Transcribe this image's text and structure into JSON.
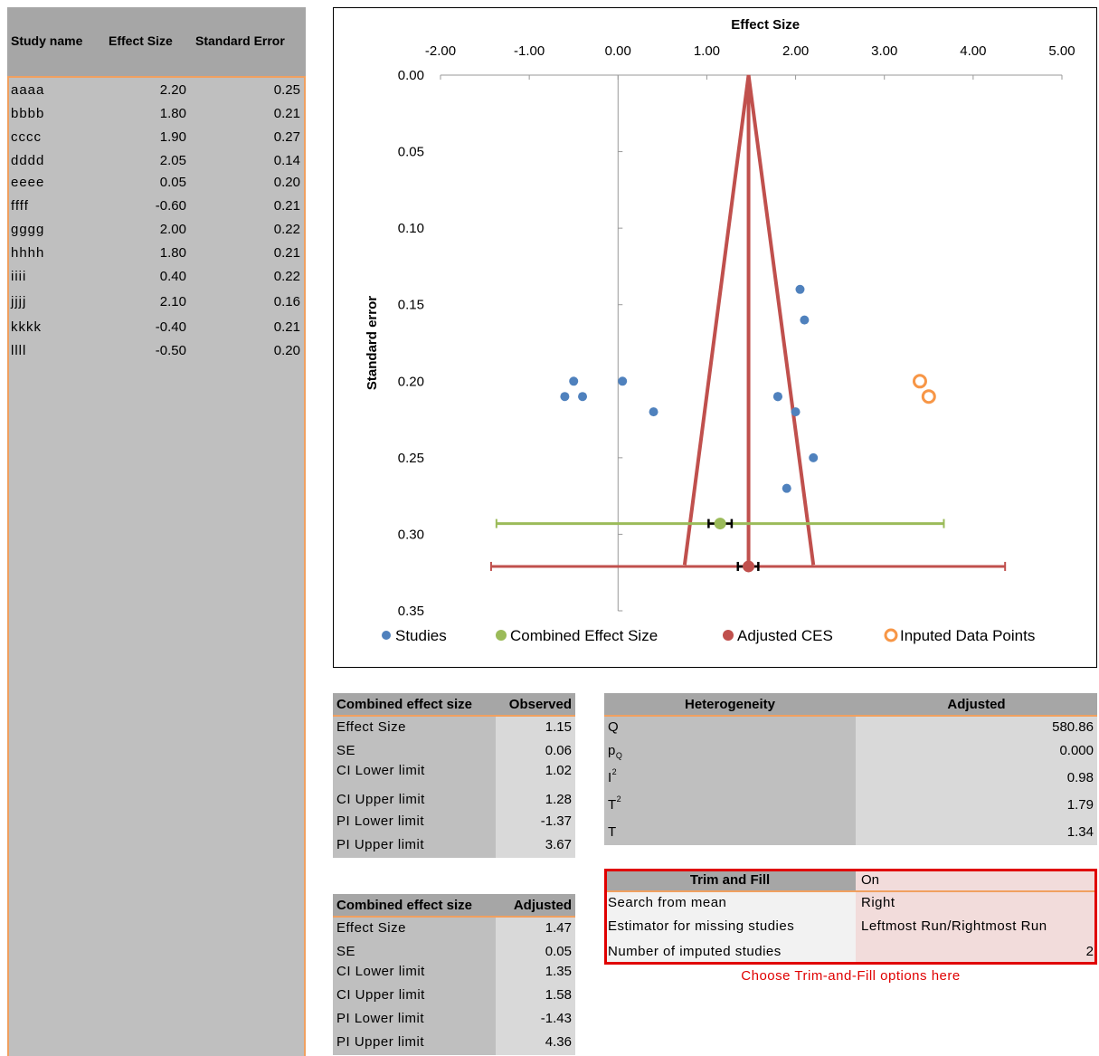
{
  "studies_table": {
    "headers": [
      "Study name",
      "Effect Size",
      "Standard Error"
    ],
    "rows": [
      {
        "name": "aaaa",
        "effect": "2.20",
        "se": "0.25"
      },
      {
        "name": "bbbb",
        "effect": "1.80",
        "se": "0.21"
      },
      {
        "name": "cccc",
        "effect": "1.90",
        "se": "0.27"
      },
      {
        "name": "dddd",
        "effect": "2.05",
        "se": "0.14"
      },
      {
        "name": "eeee",
        "effect": "0.05",
        "se": "0.20"
      },
      {
        "name": "ffff",
        "effect": "-0.60",
        "se": "0.21"
      },
      {
        "name": "gggg",
        "effect": "2.00",
        "se": "0.22"
      },
      {
        "name": "hhhh",
        "effect": "1.80",
        "se": "0.21"
      },
      {
        "name": "iiii",
        "effect": "0.40",
        "se": "0.22"
      },
      {
        "name": "jjjj",
        "effect": "2.10",
        "se": "0.16"
      },
      {
        "name": "kkkk",
        "effect": "-0.40",
        "se": "0.21"
      },
      {
        "name": "llll",
        "effect": "-0.50",
        "se": "0.20"
      }
    ]
  },
  "chart_data": {
    "type": "scatter",
    "title": "Effect Size",
    "xlabel": "Effect Size",
    "ylabel": "Standard error",
    "xlim": [
      -2,
      5
    ],
    "ylim": [
      0,
      0.35
    ],
    "y_inverted": true,
    "x_ticks": [
      "-2.00",
      "-1.00",
      "0.00",
      "1.00",
      "2.00",
      "3.00",
      "4.00",
      "5.00"
    ],
    "y_ticks": [
      "0.00",
      "0.05",
      "0.10",
      "0.15",
      "0.20",
      "0.25",
      "0.30",
      "0.35"
    ],
    "legend_position": "bottom",
    "series": [
      {
        "name": "Studies",
        "color": "#4f81bd",
        "points": [
          [
            2.2,
            0.25
          ],
          [
            1.8,
            0.21
          ],
          [
            1.9,
            0.27
          ],
          [
            2.05,
            0.14
          ],
          [
            0.05,
            0.2
          ],
          [
            -0.6,
            0.21
          ],
          [
            2.0,
            0.22
          ],
          [
            1.8,
            0.21
          ],
          [
            0.4,
            0.22
          ],
          [
            2.1,
            0.16
          ],
          [
            -0.4,
            0.21
          ],
          [
            -0.5,
            0.2
          ]
        ]
      },
      {
        "name": "Combined Effect Size",
        "color": "#9bbb59",
        "point": [
          1.15,
          0.293
        ],
        "ci": [
          1.02,
          1.28
        ],
        "pi": [
          -1.37,
          3.67
        ]
      },
      {
        "name": "Adjusted CES",
        "color": "#c0504d",
        "point": [
          1.47,
          0.321
        ],
        "ci": [
          1.35,
          1.58
        ],
        "pi": [
          -1.43,
          4.36
        ]
      },
      {
        "name": "Inputed Data Points",
        "color": "#f79646",
        "hollow": true,
        "points": [
          [
            3.4,
            0.2
          ],
          [
            3.5,
            0.21
          ]
        ]
      }
    ],
    "funnel": {
      "color": "#c0504d",
      "apex": [
        1.47,
        0.0
      ],
      "base_left": [
        0.75,
        0.32
      ],
      "base_right": [
        2.2,
        0.32
      ]
    }
  },
  "observed_table": {
    "header_label": "Combined effect size",
    "header_value": "Observed",
    "rows": [
      {
        "label": "Effect Size",
        "value": "1.15"
      },
      {
        "label": "SE",
        "value": "0.06"
      },
      {
        "label": "CI Lower limit",
        "value": "1.02"
      },
      {
        "label": "CI Upper limit",
        "value": "1.28"
      },
      {
        "label": "PI Lower limit",
        "value": "-1.37"
      },
      {
        "label": "PI Upper limit",
        "value": "3.67"
      }
    ]
  },
  "adjusted_table": {
    "header_label": "Combined effect size",
    "header_value": "Adjusted",
    "rows": [
      {
        "label": "Effect Size",
        "value": "1.47"
      },
      {
        "label": "SE",
        "value": "0.05"
      },
      {
        "label": "CI Lower limit",
        "value": "1.35"
      },
      {
        "label": "CI Upper limit",
        "value": "1.58"
      },
      {
        "label": "PI Lower limit",
        "value": "-1.43"
      },
      {
        "label": "PI Upper limit",
        "value": "4.36"
      }
    ]
  },
  "heterogeneity_table": {
    "header_label": "Heterogeneity",
    "header_value": "Adjusted",
    "rows": [
      {
        "label": "Q",
        "sup": "",
        "sub": "",
        "value": "580.86"
      },
      {
        "label": "p",
        "sup": "",
        "sub": "Q",
        "value": "0.000"
      },
      {
        "label": "I",
        "sup": "2",
        "sub": "",
        "value": "0.98"
      },
      {
        "label": "T",
        "sup": "2",
        "sub": "",
        "value": "1.79"
      },
      {
        "label": "T",
        "sup": "",
        "sub": "",
        "value": "1.34"
      }
    ]
  },
  "trim_fill": {
    "header_label": "Trim and Fill",
    "header_value": "On",
    "rows": [
      {
        "label": "Search from mean",
        "value": "Right"
      },
      {
        "label": "Estimator for missing studies",
        "value": "Leftmost Run/Rightmost Run"
      },
      {
        "label": "Number of imputed studies",
        "value": "2"
      }
    ],
    "note": "Choose Trim-and-Fill options here",
    "box_color": "#e00000"
  }
}
